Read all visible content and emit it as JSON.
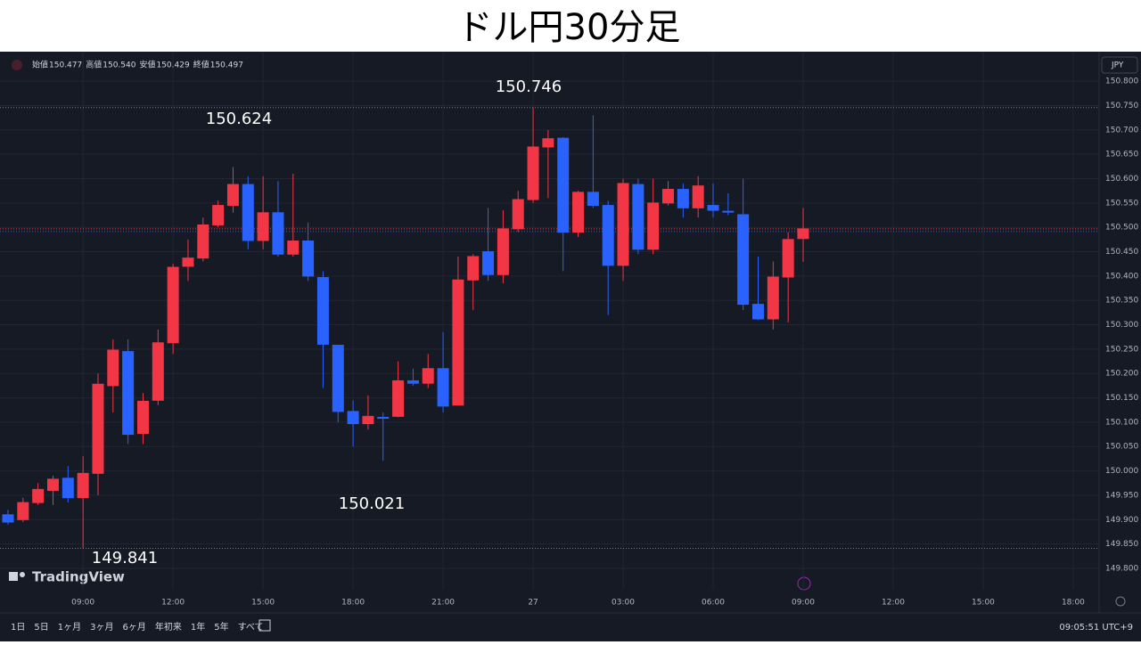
{
  "header": {
    "title": "ドル円30分足"
  },
  "legend": {
    "items": [
      {
        "label": "始値",
        "value": "150.477"
      },
      {
        "label": "高値",
        "value": "150.540"
      },
      {
        "label": "安値",
        "value": "150.429"
      },
      {
        "label": "終値",
        "value": "150.497"
      }
    ],
    "currency": "JPY"
  },
  "chart_data": {
    "type": "candlestick",
    "categories": [
      null,
      null,
      null,
      null,
      null,
      "09:00",
      null,
      null,
      null,
      null,
      null,
      "12:00",
      null,
      null,
      null,
      null,
      null,
      "15:00",
      null,
      null,
      null,
      null,
      null,
      "18:00",
      null,
      null,
      null,
      null,
      null,
      "21:00",
      null,
      null,
      null,
      null,
      null,
      "27",
      null,
      null,
      null,
      null,
      null,
      "03:00",
      null,
      null,
      null,
      null,
      null,
      "06:00",
      null,
      null,
      null,
      null,
      null,
      "09:00"
    ],
    "future_ticks": [
      "12:00",
      "15:00",
      "18:00"
    ],
    "open": [
      149.91,
      149.9,
      149.935,
      149.96,
      149.985,
      149.945,
      149.995,
      150.175,
      150.245,
      150.077,
      150.145,
      150.263,
      150.42,
      150.437,
      150.505,
      150.545,
      150.588,
      150.473,
      150.53,
      150.445,
      150.472,
      150.397,
      150.258,
      150.122,
      150.097,
      150.11,
      150.112,
      150.185,
      150.18,
      150.21,
      150.135,
      150.392,
      150.45,
      150.403,
      150.497,
      150.557,
      150.665,
      150.683,
      150.49,
      150.572,
      150.545,
      150.422,
      150.588,
      150.455,
      150.55,
      150.578,
      150.54,
      150.545,
      150.533,
      150.526,
      150.342,
      150.312,
      150.398,
      150.477
    ],
    "high": [
      149.92,
      149.945,
      149.975,
      149.99,
      150.01,
      150.03,
      150.2,
      150.27,
      150.27,
      150.16,
      150.29,
      150.425,
      150.475,
      150.52,
      150.555,
      150.624,
      150.605,
      150.605,
      150.595,
      150.61,
      150.51,
      150.41,
      150.258,
      150.145,
      150.155,
      150.12,
      150.225,
      150.21,
      150.24,
      150.285,
      150.44,
      150.445,
      150.54,
      150.535,
      150.575,
      150.746,
      150.7,
      150.685,
      150.575,
      150.73,
      150.555,
      150.6,
      150.6,
      150.6,
      150.595,
      150.59,
      150.605,
      150.59,
      150.57,
      150.6,
      150.44,
      150.43,
      150.49,
      150.54
    ],
    "low": [
      149.89,
      149.895,
      149.93,
      149.93,
      149.935,
      149.841,
      149.95,
      150.12,
      150.055,
      150.055,
      150.135,
      150.24,
      150.39,
      150.43,
      150.5,
      150.53,
      150.455,
      150.455,
      150.44,
      150.44,
      150.39,
      150.17,
      150.1,
      150.05,
      150.085,
      150.021,
      150.11,
      150.175,
      150.17,
      150.12,
      150.135,
      150.33,
      150.39,
      150.385,
      150.49,
      150.55,
      150.56,
      150.41,
      150.48,
      150.54,
      150.32,
      150.39,
      150.445,
      150.445,
      150.545,
      150.52,
      150.52,
      150.52,
      150.525,
      150.33,
      150.31,
      150.29,
      150.305,
      150.429
    ],
    "close": [
      149.895,
      149.935,
      149.962,
      149.983,
      149.945,
      149.995,
      150.178,
      150.248,
      150.075,
      150.143,
      150.263,
      150.418,
      150.437,
      150.505,
      150.545,
      150.588,
      150.473,
      150.53,
      150.445,
      150.472,
      150.4,
      150.26,
      150.122,
      150.097,
      150.112,
      150.108,
      150.185,
      150.18,
      150.21,
      150.133,
      150.392,
      150.44,
      150.403,
      150.497,
      150.557,
      150.665,
      150.682,
      150.49,
      150.572,
      150.545,
      150.422,
      150.59,
      150.455,
      150.55,
      150.578,
      150.54,
      150.585,
      150.535,
      150.532,
      150.342,
      150.312,
      150.398,
      150.475,
      150.497
    ],
    "up_color": "#f23645",
    "down_color": "#2962ff",
    "ylim": [
      149.756,
      150.857
    ],
    "yticks": [
      {
        "value": 149.8,
        "label": "149.800"
      },
      {
        "value": 149.85,
        "label": "149.850"
      },
      {
        "value": 149.9,
        "label": "149.900"
      },
      {
        "value": 149.95,
        "label": "149.950"
      },
      {
        "value": 150,
        "label": "150.000"
      },
      {
        "value": 150.05,
        "label": "150.050"
      },
      {
        "value": 150.1,
        "label": "150.100"
      },
      {
        "value": 150.15,
        "label": "150.150"
      },
      {
        "value": 150.2,
        "label": "150.200"
      },
      {
        "value": 150.25,
        "label": "150.250"
      },
      {
        "value": 150.3,
        "label": "150.300"
      },
      {
        "value": 150.35,
        "label": "150.350"
      },
      {
        "value": 150.4,
        "label": "150.400"
      },
      {
        "value": 150.45,
        "label": "150.450"
      },
      {
        "value": 150.5,
        "label": "150.500"
      },
      {
        "value": 150.55,
        "label": "150.550"
      },
      {
        "value": 150.6,
        "label": "150.600"
      },
      {
        "value": 150.65,
        "label": "150.650"
      },
      {
        "value": 150.7,
        "label": "150.700"
      },
      {
        "value": 150.75,
        "label": "150.750"
      },
      {
        "value": 150.8,
        "label": "150.800"
      }
    ],
    "grid": true,
    "annotations": [
      {
        "text": "150.746"
      },
      {
        "text": "150.624"
      },
      {
        "text": "150.021"
      },
      {
        "text": "149.841"
      }
    ]
  },
  "logo": "TradingView",
  "toolbar": {
    "ranges": [
      "1日",
      "5日",
      "1ヶ月",
      "3ヶ月",
      "6ヶ月",
      "年初来",
      "1年",
      "5年",
      "すべて"
    ],
    "clock": "09:05:51 UTC+9"
  }
}
